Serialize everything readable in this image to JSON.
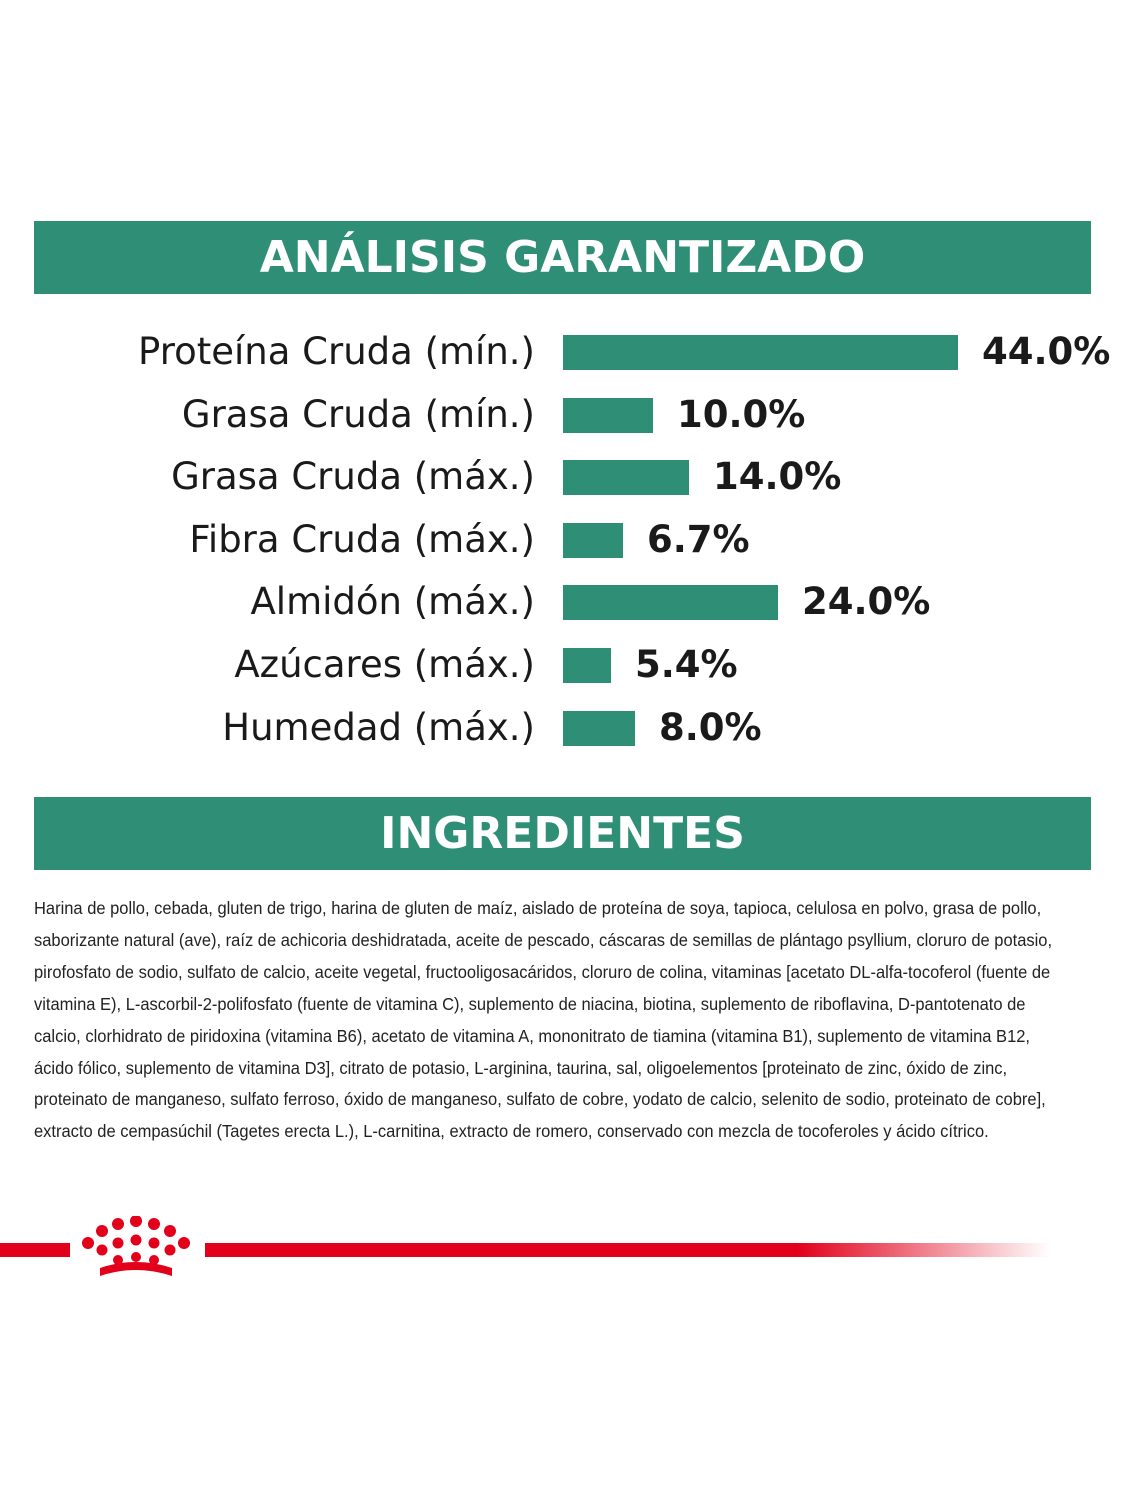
{
  "sections": {
    "analysis_title": "ANÁLISIS GARANTIZADO",
    "ingredients_title": "INGREDIENTES"
  },
  "chart_data": {
    "type": "bar",
    "orientation": "horizontal",
    "title": "ANÁLISIS GARANTIZADO",
    "categories": [
      "Proteína Cruda (mín.)",
      "Grasa Cruda (mín.)",
      "Grasa Cruda (máx.)",
      "Fibra Cruda (máx.)",
      "Almidón (máx.)",
      "Azúcares (máx.)",
      "Humedad (máx.)"
    ],
    "values": [
      44.0,
      10.0,
      14.0,
      6.7,
      24.0,
      5.4,
      8.0
    ],
    "value_labels": [
      "44.0%",
      "10.0%",
      "14.0%",
      "6.7%",
      "24.0%",
      "5.4%",
      "8.0%"
    ],
    "unit": "%",
    "xlim": [
      0,
      44.0
    ],
    "grid": false,
    "legend": "none",
    "bar_color": "#2f8f76"
  },
  "ingredients": {
    "text": "Harina de pollo, cebada, gluten de trigo, harina de gluten de maíz, aislado de proteína de soya, tapioca, celulosa en polvo, grasa de pollo, saborizante natural (ave), raíz de achicoria deshidratada, aceite de pescado, cáscaras de semillas de plántago psyllium, cloruro de potasio, pirofosfato de sodio, sulfato de calcio, aceite vegetal, fructooligosacáridos, cloruro de colina, vitaminas [acetato DL-alfa-tocoferol (fuente de vitamina E), L-ascorbil-2-polifosfato (fuente de vitamina C), suplemento de niacina, biotina, suplemento de riboflavina, D-pantotenato de calcio, clorhidrato de piridoxina (vitamina B6), acetato de vitamina A, mononitrato de tiamina (vitamina B1), suplemento de vitamina B12, ácido fólico, suplemento de vitamina D3], citrato de potasio, L-arginina, taurina, sal, oligoelementos [proteinato de zinc, óxido de zinc, proteinato de manganeso, sulfato ferroso, óxido de manganeso, sulfato de cobre, yodato de calcio, selenito de sodio, proteinato de cobre], extracto de cempasúchil (Tagetes erecta L.), L-carnitina, extracto de romero, conservado con mezcla de tocoferoles y ácido cítrico."
  },
  "brand": {
    "logo_icon": "crown-icon",
    "accent_color": "#e2001a"
  }
}
